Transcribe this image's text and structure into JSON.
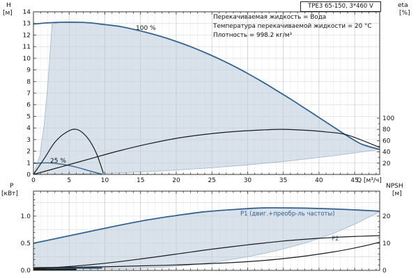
{
  "title_box": {
    "text": "TPE3 65-150, 3*460 V"
  },
  "info": {
    "lines": [
      "Перекачиваемая жидкость = Вода",
      "Температура перекачиваемой жидкости = 20 °C",
      "Плотность = 998.2 кг/м³"
    ]
  },
  "axes_labels": {
    "h": "H",
    "h_unit": "[м]",
    "eta": "eta",
    "eta_unit": "[%]",
    "q": "Q [м³/ч]",
    "p": "P",
    "p_unit": "[кВт]",
    "npsh": "NPSH",
    "npsh_unit": "[м]"
  },
  "curve_labels": {
    "speed_100": "100 %",
    "speed_min": "25 %",
    "p1": "Р1 (двиг.+преобр-ль частоты)",
    "p2": "P2"
  },
  "colors": {
    "curve_blue": "#35638f",
    "label_blue": "#2d5f93",
    "curve_black": "#1a1a1a",
    "envelope": "#b9cbdb",
    "grid_major": "#c9c9c9",
    "grid_minor": "#ededed",
    "grid_horiz": "#d9d9d9",
    "frame": "#333333"
  },
  "chart_data": [
    {
      "type": "line",
      "title": "TPE3 65-150, 3*460 V",
      "xlabel": "Q [м³/ч]",
      "ylabel_left": "H [м]",
      "ylabel_right": "eta [%]",
      "xlim": [
        0,
        48.5
      ],
      "ylim_left": [
        0,
        14
      ],
      "x_ticks": {
        "values": [
          0,
          5,
          10,
          15,
          20,
          25,
          30,
          35,
          40,
          45
        ],
        "labels": [
          "0",
          "5",
          "10",
          "15",
          "20",
          "25",
          "30",
          "35",
          "40",
          "45"
        ]
      },
      "y_ticks_left": {
        "values": [
          0,
          1,
          2,
          3,
          4,
          5,
          6,
          7,
          8,
          9,
          10,
          11,
          12,
          13,
          14
        ],
        "labels": [
          "0",
          "1",
          "2",
          "3",
          "4",
          "5",
          "6",
          "7",
          "8",
          "9",
          "10",
          "11",
          "12",
          "13",
          "14"
        ]
      },
      "eta_right_axis": {
        "ticks": [
          20,
          40,
          60,
          80,
          100
        ],
        "labels": [
          "20",
          "40",
          "60",
          "80",
          "100"
        ],
        "h_at_100pct": 4.85
      },
      "series": [
        {
          "name": "head-100pct",
          "axis": "left",
          "style": "blue-bold",
          "x": [
            0,
            2,
            4,
            6,
            8,
            10,
            12,
            14,
            16,
            18,
            20,
            22,
            24,
            26,
            28,
            30,
            32,
            34,
            36,
            38,
            40,
            42,
            44,
            46,
            48.5
          ],
          "y": [
            12.95,
            13.05,
            13.1,
            13.1,
            13.05,
            12.9,
            12.75,
            12.5,
            12.2,
            11.85,
            11.45,
            11.0,
            10.5,
            9.95,
            9.35,
            8.7,
            8.0,
            7.25,
            6.5,
            5.7,
            4.9,
            4.1,
            3.3,
            2.6,
            2.15
          ]
        },
        {
          "name": "head-min-speed",
          "axis": "left",
          "style": "blue-thin",
          "x": [
            0,
            2,
            4,
            6,
            8,
            9.6
          ],
          "y": [
            0.95,
            1.0,
            0.88,
            0.63,
            0.28,
            0.02
          ]
        },
        {
          "name": "eta-100pct",
          "axis": "right-eta",
          "style": "black",
          "x": [
            0,
            4,
            8,
            12,
            16,
            20,
            24,
            28,
            32,
            35,
            38,
            41,
            44,
            48.5
          ],
          "pct": [
            0,
            14,
            28,
            42,
            54,
            64,
            71,
            76,
            79,
            80,
            78.5,
            75.5,
            70,
            48
          ]
        },
        {
          "name": "eta-min-speed",
          "axis": "right-eta",
          "style": "black",
          "x": [
            0,
            1.5,
            3,
            4.5,
            6,
            7.5,
            8.8,
            9.8
          ],
          "pct": [
            0,
            28,
            57,
            74,
            80,
            66,
            38,
            2
          ]
        }
      ],
      "envelope": {
        "left_boundary": {
          "x": [
            0,
            0.9,
            1.5,
            2.0,
            2.35,
            2.6
          ],
          "y": [
            0,
            1.6,
            4.3,
            7.7,
            10.6,
            12.95
          ]
        },
        "lower_boundary": {
          "x": [
            0,
            6,
            12,
            18,
            24,
            30,
            36,
            42,
            48.5
          ],
          "y": [
            0,
            0.03,
            0.13,
            0.3,
            0.53,
            0.82,
            1.18,
            1.61,
            2.15
          ]
        }
      }
    },
    {
      "type": "line",
      "xlabel": "Q [м³/ч]",
      "ylabel_left": "P [кВт]",
      "ylabel_right": "NPSH [м]",
      "xlim": [
        0,
        48.5
      ],
      "ylim_left": [
        0,
        1.46
      ],
      "y_ticks_left": {
        "values": [
          0,
          0.5,
          1.0
        ],
        "labels": [
          "0.0",
          "0.5",
          "1.0"
        ]
      },
      "npsh_right_axis": {
        "ticks": [
          0,
          10,
          20
        ],
        "labels": [
          "0",
          "10",
          "20"
        ],
        "p_at_20m": 1.0
      },
      "series": [
        {
          "name": "p1-100pct",
          "axis": "left",
          "style": "blue-bold",
          "x": [
            0,
            4,
            8,
            12,
            16,
            20,
            24,
            28,
            32,
            36,
            40,
            44,
            48.5
          ],
          "y": [
            0.5,
            0.61,
            0.72,
            0.83,
            0.93,
            1.01,
            1.08,
            1.12,
            1.15,
            1.15,
            1.14,
            1.12,
            1.09
          ]
        },
        {
          "name": "p1-min-speed",
          "axis": "left",
          "style": "blue-thick",
          "x": [
            0,
            5,
            9.6
          ],
          "y": [
            0.035,
            0.042,
            0.048
          ]
        },
        {
          "name": "p2",
          "axis": "left",
          "style": "black",
          "x": [
            0,
            5,
            10,
            15,
            20,
            25,
            30,
            35,
            40,
            44,
            48.5
          ],
          "y": [
            0.03,
            0.07,
            0.13,
            0.21,
            0.3,
            0.39,
            0.47,
            0.54,
            0.59,
            0.62,
            0.64
          ]
        },
        {
          "name": "p2-min-speed",
          "axis": "left",
          "style": "black-thick",
          "x": [
            0,
            6
          ],
          "y": [
            0.012,
            0.018
          ]
        },
        {
          "name": "npsh",
          "axis": "right-npsh",
          "style": "black",
          "x": [
            0,
            10,
            20,
            30,
            36,
            42,
            46,
            48.5
          ],
          "m": [
            1.0,
            1.3,
            2.0,
            3.2,
            4.6,
            6.8,
            8.8,
            10.4
          ]
        }
      ],
      "envelope": {
        "lower_boundary": {
          "x": [
            0,
            6,
            9.6,
            14,
            18,
            22,
            26,
            30,
            34,
            38,
            42,
            45,
            48.5
          ],
          "y": [
            0.03,
            0.038,
            0.032,
            0.034,
            0.055,
            0.1,
            0.16,
            0.25,
            0.36,
            0.5,
            0.68,
            0.85,
            1.08
          ]
        }
      }
    }
  ]
}
